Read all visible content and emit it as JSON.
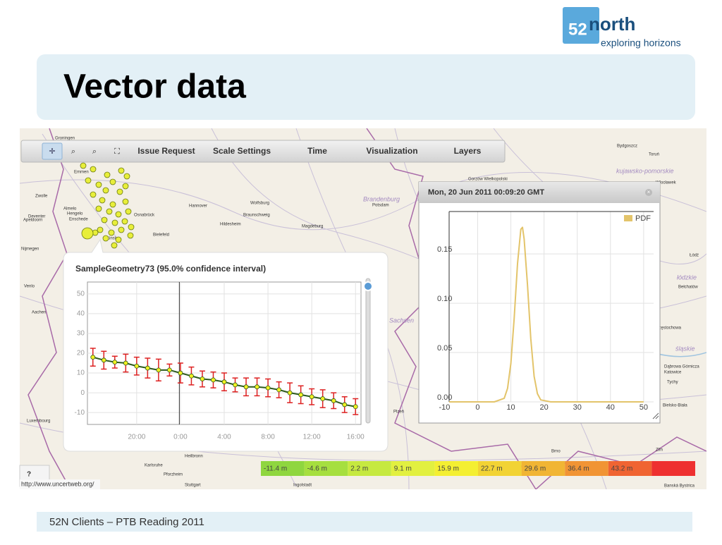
{
  "logo": {
    "number": "52",
    "name": "north",
    "tagline": "exploring horizons"
  },
  "header": {
    "title": "Vector data"
  },
  "toolbar": {
    "items": [
      "Issue Request",
      "Scale Settings",
      "Time",
      "Visualization",
      "Layers"
    ]
  },
  "map_labels": [
    "Groningen",
    "Emmen",
    "Zwolle",
    "Almelo",
    "Deventer",
    "Hengelo",
    "Enschede",
    "Apeldoorn",
    "Osnabrück",
    "Hannover",
    "Wolfsburg",
    "Braunschweig",
    "Hildesheim",
    "Magdeburg",
    "Bielefeld",
    "Münster",
    "Nijmegen",
    "Brandenburg",
    "Potsdam",
    "Gorzów Wielkopolski",
    "Bydgoszcz",
    "Toruń",
    "kujawsko-pomorskie",
    "Włocławek",
    "Łódź",
    "łódzkie",
    "Bełchatów",
    "Częstochowa",
    "śląskie",
    "Dąbrowa Górnicza",
    "Katowice",
    "Tychy",
    "Bielsko-Biała",
    "Brno",
    "Zlín",
    "Banská Bystrica",
    "Karlsruhe",
    "Pforzheim",
    "Stuttgart",
    "Heilbronn",
    "Ingolstadt",
    "Luxembourg",
    "Sachsen",
    "Plzeň",
    "Aachen",
    "Venlo"
  ],
  "chart_data": [
    {
      "type": "line",
      "title": "SampleGeometry73 (95.0% confidence interval)",
      "categories": [
        null,
        null,
        null,
        null,
        "20:00",
        null,
        null,
        null,
        "0:00",
        null,
        null,
        null,
        "4:00",
        null,
        null,
        null,
        "8:00",
        null,
        null,
        null,
        "12:00",
        null,
        null,
        null,
        "16:00"
      ],
      "values": [
        18,
        16.5,
        15.5,
        15,
        13.5,
        12.5,
        11.5,
        11.5,
        10,
        8.5,
        7,
        6.5,
        5.5,
        4,
        3,
        3,
        2.5,
        1.5,
        0,
        -1,
        -2,
        -3,
        -4,
        -6,
        -7
      ],
      "errors": [
        4.5,
        4.5,
        3,
        4.5,
        4.5,
        5,
        5.5,
        3,
        5,
        4.5,
        4,
        4,
        4.5,
        3.5,
        4.5,
        4.5,
        4.5,
        4,
        5,
        4.5,
        4,
        4.5,
        4,
        4,
        4
      ],
      "color": "#2d5a1e",
      "marker_color": "#f0f020",
      "error_color": "#dd2222",
      "ylim": [
        -16,
        56
      ],
      "yticks": [
        -10,
        0,
        10,
        20,
        30,
        40,
        50
      ],
      "grid": true
    },
    {
      "type": "line",
      "title": "Mon, 20 Jun 2011 00:09:20 GMT",
      "x": [
        -10,
        0,
        5,
        8,
        9,
        10,
        11,
        12,
        13,
        13.5,
        14,
        15,
        16,
        17,
        18,
        19,
        22,
        30,
        50
      ],
      "series": [
        {
          "name": "PDF",
          "color": "#e3c46a",
          "values": [
            0,
            0,
            0,
            0.0036,
            0.0137,
            0.039,
            0.085,
            0.14,
            0.175,
            0.177,
            0.165,
            0.119,
            0.064,
            0.026,
            0.0083,
            0.002,
            0,
            0,
            0
          ]
        }
      ],
      "xlim": [
        -8.6,
        53
      ],
      "xticks": [
        -10,
        0,
        10,
        20,
        30,
        40,
        50
      ],
      "ylim": [
        0,
        0.193
      ],
      "yticks": [
        {
          "value": 0,
          "label": "0.00"
        },
        {
          "value": 0.05,
          "label": "0.05"
        },
        {
          "value": 0.1,
          "label": "0.10"
        },
        0.15
      ],
      "grid": true,
      "legend": "top-right"
    }
  ],
  "color_legend": {
    "labels": [
      "-11.4 m",
      "-4.6 m",
      "2.2 m",
      "9.1 m",
      "15.9 m",
      "22.7 m",
      "29.6 m",
      "36.4 m",
      "43.2 m"
    ],
    "colors": [
      "#8fd63f",
      "#a6df3f",
      "#c6e940",
      "#e2f040",
      "#f4ef32",
      "#f2d334",
      "#f1b534",
      "#f19434",
      "#f06432",
      "#ee3030"
    ]
  },
  "help_button": "?",
  "status_url": "http://www.uncertweb.org/",
  "footer": "52N Clients – PTB Reading 2011"
}
